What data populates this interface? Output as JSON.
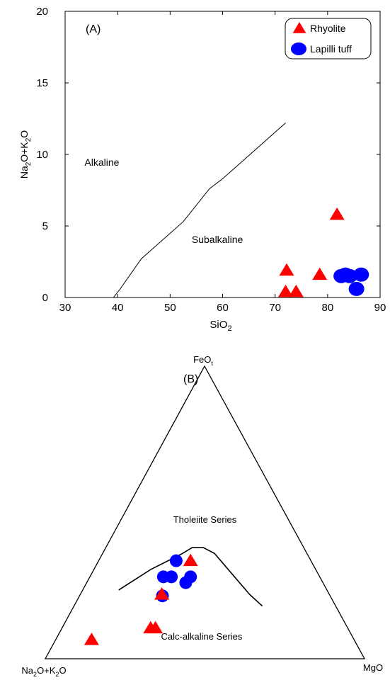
{
  "chart_data": [
    {
      "panel_label": "(A)",
      "type": "scatter",
      "xlabel_main": "SiO",
      "xlabel_sub": "2",
      "ylabel": {
        "p1": "Na",
        "s1": "2",
        "p2": "O+K",
        "s2": "2",
        "p3": "O"
      },
      "xlim": [
        30,
        90
      ],
      "ylim": [
        0,
        20
      ],
      "xticks": [
        30,
        40,
        50,
        60,
        70,
        80,
        90
      ],
      "yticks": [
        0,
        5,
        10,
        15,
        20
      ],
      "grid": false,
      "legend_position": "top-right",
      "legend": [
        {
          "name": "Rhyolite",
          "marker": "triangle",
          "color": "#ff0000"
        },
        {
          "name": "Lapilli tuff",
          "marker": "circle",
          "color": "#0000ff"
        }
      ],
      "regions": [
        {
          "label": "Alkaline",
          "x": 37,
          "y": 9.2
        },
        {
          "label": "Subalkaline",
          "x": 59,
          "y": 3.8
        }
      ],
      "divider": [
        [
          39.2,
          0
        ],
        [
          40.5,
          0.6
        ],
        [
          44.5,
          2.7
        ],
        [
          52.5,
          5.3
        ],
        [
          57.5,
          7.6
        ],
        [
          60,
          8.3
        ],
        [
          72,
          12.2
        ]
      ],
      "series": [
        {
          "name": "Rhyolite",
          "marker": "triangle",
          "color": "#ff0000",
          "points": [
            [
              72.2,
              1.9
            ],
            [
              78.5,
              1.6
            ],
            [
              81.8,
              5.8
            ],
            [
              72.0,
              0.4
            ],
            [
              74.0,
              0.4
            ]
          ]
        },
        {
          "name": "Lapilli tuff",
          "marker": "circle",
          "color": "#0000ff",
          "points": [
            [
              82.6,
              1.5
            ],
            [
              83.4,
              1.6
            ],
            [
              84.2,
              1.5
            ],
            [
              86.4,
              1.6
            ],
            [
              85.5,
              0.6
            ]
          ]
        }
      ]
    },
    {
      "panel_label": "(B)",
      "type": "scatter",
      "plot": "ternary AFM",
      "apex_top": {
        "main": "FeO",
        "sub": "t"
      },
      "apex_left": {
        "p1": "Na",
        "s1": "2",
        "p2": "O+K",
        "s2": "2",
        "p3": "O"
      },
      "apex_right": "MgO",
      "regions": [
        {
          "label": "Tholeiite Series",
          "x": 0.5,
          "y": 0.465
        },
        {
          "label": "Calc-alkaline Series",
          "x": 0.49,
          "y": 0.065
        }
      ],
      "divider": [
        [
          0.23,
          0.235
        ],
        [
          0.33,
          0.305
        ],
        [
          0.43,
          0.36
        ],
        [
          0.46,
          0.38
        ],
        [
          0.495,
          0.38
        ],
        [
          0.53,
          0.36
        ],
        [
          0.64,
          0.22
        ],
        [
          0.68,
          0.18
        ]
      ],
      "series": [
        {
          "name": "Rhyolite",
          "marker": "triangle",
          "color": "#ff0000",
          "points": [
            [
              0.455,
              0.335
            ],
            [
              0.365,
              0.22
            ],
            [
              0.33,
              0.105
            ],
            [
              0.345,
              0.105
            ],
            [
              0.145,
              0.065
            ]
          ]
        },
        {
          "name": "Lapilli tuff",
          "marker": "circle",
          "color": "#0000ff",
          "points": [
            [
              0.41,
              0.335
            ],
            [
              0.37,
              0.28
            ],
            [
              0.395,
              0.28
            ],
            [
              0.44,
              0.26
            ],
            [
              0.455,
              0.28
            ],
            [
              0.367,
              0.215
            ]
          ]
        }
      ]
    }
  ]
}
